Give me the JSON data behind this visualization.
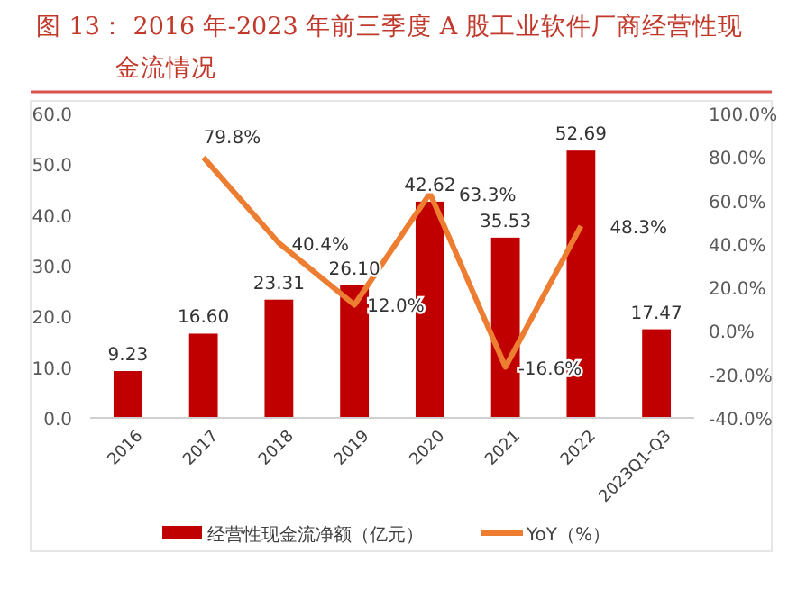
{
  "chart_data": {
    "type": "bar",
    "title": "图 13：  2016 年-2023 年前三季度 A 股工业软件厂商经营性现金流情况",
    "categories": [
      "2016",
      "2017",
      "2018",
      "2019",
      "2020",
      "2021",
      "2022",
      "2023Q1-Q3"
    ],
    "series": [
      {
        "name": "经营性现金流净额（亿元）",
        "color": "#c00000",
        "values": [
          9.23,
          16.6,
          23.31,
          26.1,
          42.62,
          35.53,
          52.69,
          17.47
        ],
        "value_labels": [
          "9.23",
          "16.60",
          "23.31",
          "26.10",
          "42.62",
          "35.53",
          "52.69",
          "17.47"
        ]
      },
      {
        "name": "YoY（%）",
        "type": "line",
        "axis": "y2",
        "color": "#ed7d31",
        "values": [
          null,
          79.8,
          40.4,
          12.0,
          63.3,
          -16.6,
          48.3,
          null
        ],
        "value_labels": [
          null,
          "79.8%",
          "40.4%",
          "12.0%",
          "63.3%",
          "-16.6%",
          "48.3%",
          null
        ]
      }
    ],
    "ylim": [
      0,
      60
    ],
    "yticks": [
      {
        "value": 0,
        "label": "0.0"
      },
      {
        "value": 10,
        "label": "10.0"
      },
      {
        "value": 20,
        "label": "20.0"
      },
      {
        "value": 30,
        "label": "30.0"
      },
      {
        "value": 40,
        "label": "40.0"
      },
      {
        "value": 50,
        "label": "50.0"
      },
      {
        "value": 60,
        "label": "60.0"
      }
    ],
    "y2lim": [
      -40,
      100
    ],
    "y2ticks": [
      {
        "value": -40,
        "label": "-40.0%"
      },
      {
        "value": -20,
        "label": "-20.0%"
      },
      {
        "value": 0,
        "label": "0.0%"
      },
      {
        "value": 20,
        "label": "20.0%"
      },
      {
        "value": 40,
        "label": "40.0%"
      },
      {
        "value": 60,
        "label": "60.0%"
      },
      {
        "value": 80,
        "label": "80.0%"
      },
      {
        "value": 100,
        "label": "100.0%"
      }
    ],
    "legend": "bottom",
    "grid": false
  }
}
